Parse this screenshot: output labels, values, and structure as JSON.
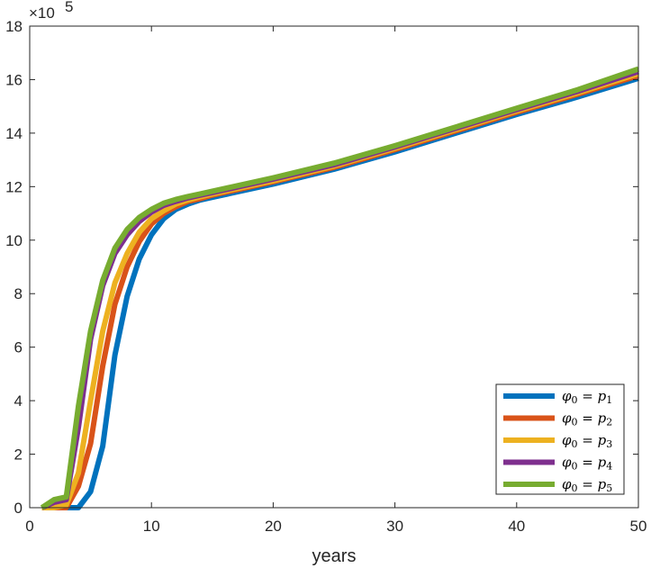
{
  "chart_data": {
    "type": "line",
    "title": "",
    "xlabel": "years",
    "ylabel": "",
    "xlim": [
      0,
      50
    ],
    "ylim": [
      0,
      18
    ],
    "y_exponent_label": "×10",
    "y_exponent_power": "5",
    "xticks": [
      0,
      10,
      20,
      30,
      40,
      50
    ],
    "yticks": [
      0,
      2,
      4,
      6,
      8,
      10,
      12,
      14,
      16,
      18
    ],
    "grid": false,
    "legend_position": "bottom-right",
    "series": [
      {
        "name": "φ₀ = p₁",
        "color": "#0072BD",
        "x": [
          1,
          2,
          3,
          4,
          5,
          6,
          7,
          8,
          9,
          10,
          11,
          12,
          13,
          14,
          15,
          20,
          25,
          30,
          35,
          40,
          45,
          50
        ],
        "y": [
          0,
          0,
          0,
          0,
          0.6,
          2.3,
          5.7,
          7.9,
          9.3,
          10.2,
          10.8,
          11.15,
          11.35,
          11.5,
          11.6,
          12.1,
          12.65,
          13.3,
          14.0,
          14.7,
          15.35,
          16.05
        ]
      },
      {
        "name": "φ₀ = p₂",
        "color": "#D95319",
        "x": [
          1,
          2,
          3,
          4,
          5,
          6,
          7,
          8,
          9,
          10,
          11,
          12,
          13,
          14,
          15,
          20,
          25,
          30,
          35,
          40,
          45,
          50
        ],
        "y": [
          0,
          0,
          0,
          0.8,
          2.4,
          5.3,
          7.6,
          9.0,
          9.95,
          10.6,
          11.0,
          11.25,
          11.45,
          11.55,
          11.68,
          12.18,
          12.72,
          13.38,
          14.08,
          14.78,
          15.45,
          16.15
        ]
      },
      {
        "name": "φ₀ = p₃",
        "color": "#EDB120",
        "x": [
          1,
          2,
          3,
          4,
          5,
          6,
          7,
          8,
          9,
          10,
          11,
          12,
          13,
          14,
          15,
          20,
          25,
          30,
          35,
          40,
          45,
          50
        ],
        "y": [
          0,
          0,
          0.1,
          1.3,
          4.0,
          6.6,
          8.4,
          9.5,
          10.3,
          10.8,
          11.1,
          11.35,
          11.5,
          11.62,
          11.73,
          12.22,
          12.77,
          13.43,
          14.13,
          14.83,
          15.5,
          16.22
        ]
      },
      {
        "name": "φ₀ = p₄",
        "color": "#7E2F8E",
        "x": [
          1,
          2,
          3,
          4,
          5,
          6,
          7,
          8,
          9,
          10,
          11,
          12,
          13,
          14,
          15,
          20,
          25,
          30,
          35,
          40,
          45,
          50
        ],
        "y": [
          0,
          0.2,
          0.3,
          3.0,
          6.3,
          8.3,
          9.5,
          10.2,
          10.7,
          11.05,
          11.3,
          11.45,
          11.58,
          11.68,
          11.78,
          12.28,
          12.82,
          13.48,
          14.18,
          14.88,
          15.56,
          16.3
        ]
      },
      {
        "name": "φ₀ = p₅",
        "color": "#77AC30",
        "x": [
          1,
          2,
          3,
          4,
          5,
          6,
          7,
          8,
          9,
          10,
          11,
          12,
          13,
          14,
          15,
          20,
          25,
          30,
          35,
          40,
          45,
          50
        ],
        "y": [
          0,
          0.3,
          0.4,
          3.8,
          6.6,
          8.5,
          9.7,
          10.4,
          10.85,
          11.15,
          11.38,
          11.52,
          11.63,
          11.73,
          11.83,
          12.33,
          12.88,
          13.53,
          14.23,
          14.93,
          15.62,
          16.4
        ]
      }
    ],
    "legend": {
      "entries": [
        {
          "base": "φ",
          "sub": "0",
          "eq": " = ",
          "var": "p",
          "vsub": "1"
        },
        {
          "base": "φ",
          "sub": "0",
          "eq": " = ",
          "var": "p",
          "vsub": "2"
        },
        {
          "base": "φ",
          "sub": "0",
          "eq": " = ",
          "var": "p",
          "vsub": "3"
        },
        {
          "base": "φ",
          "sub": "0",
          "eq": " = ",
          "var": "p",
          "vsub": "4"
        },
        {
          "base": "φ",
          "sub": "0",
          "eq": " = ",
          "var": "p",
          "vsub": "5"
        }
      ]
    }
  }
}
